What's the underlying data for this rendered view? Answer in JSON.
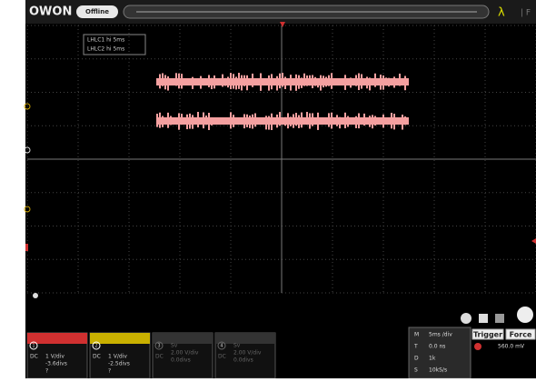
{
  "header": {
    "logo": "OWON",
    "status": "Offline"
  },
  "measurements": [
    "LHLC1   hi   5ms",
    "LHLC2   hi   5ms"
  ],
  "channels": [
    {
      "number": "1",
      "coupling": "DC",
      "scale": "1 V/div",
      "offset": "-3.6divs",
      "probe": "?"
    },
    {
      "number": "2",
      "coupling": "DC",
      "scale": "1 V/div",
      "offset": "-2.5divs",
      "probe": "?"
    },
    {
      "number": "3",
      "mode": "Sv",
      "coupling": "DC",
      "scale": "2.00 V/div",
      "offset": "0.0divs"
    },
    {
      "number": "4",
      "mode": "Sv",
      "coupling": "DC",
      "scale": "2.00 V/div",
      "offset": "0.0divs"
    }
  ],
  "timebase": [
    {
      "key": "M",
      "value": "5ms /div"
    },
    {
      "key": "T",
      "value": "0.0 ns"
    },
    {
      "key": "D",
      "value": "1k"
    },
    {
      "key": "S",
      "value": "10kS/s"
    }
  ],
  "trigger": {
    "buttons": [
      "Trigger",
      "Force"
    ],
    "level": "560.0 mV"
  }
}
